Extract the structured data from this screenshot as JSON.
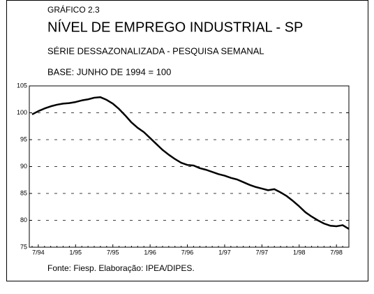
{
  "chart_data": {
    "type": "line",
    "label": "GRÁFICO 2.3",
    "title": "NÍVEL DE EMPREGO INDUSTRIAL - SP",
    "subtitle": "SÉRIE DESSAZONALIZADA - PESQUISA SEMANAL",
    "annotation": "BASE: JUNHO DE 1994 = 100",
    "source": "Fonte: Fiesp. Elaboração: IPEA/DIPES.",
    "categories": [
      null,
      "7/94",
      null,
      null,
      null,
      null,
      null,
      "1/95",
      null,
      null,
      null,
      null,
      null,
      "7/95",
      null,
      null,
      null,
      null,
      null,
      "1/96",
      null,
      null,
      null,
      null,
      null,
      "7/96",
      null,
      null,
      null,
      null,
      null,
      "1/97",
      null,
      null,
      null,
      null,
      null,
      "7/97",
      null,
      null,
      null,
      null,
      null,
      "1/98",
      null,
      null,
      null,
      null,
      null,
      "7/98",
      null,
      null
    ],
    "values": [
      99.7,
      100.3,
      100.8,
      101.2,
      101.5,
      101.7,
      101.8,
      102.0,
      102.3,
      102.5,
      102.8,
      102.9,
      102.4,
      101.7,
      100.7,
      99.5,
      98.2,
      97.2,
      96.4,
      95.3,
      94.2,
      93.1,
      92.2,
      91.4,
      90.7,
      90.3,
      90.2,
      89.7,
      89.4,
      89.0,
      88.6,
      88.3,
      87.9,
      87.6,
      87.1,
      86.6,
      86.2,
      85.9,
      85.6,
      85.8,
      85.2,
      84.5,
      83.6,
      82.6,
      81.5,
      80.7,
      80.0,
      79.4,
      79.0,
      78.9,
      79.1,
      78.4
    ],
    "color": "#000000",
    "ylim": [
      75,
      105
    ],
    "yticks": [
      75,
      80,
      85,
      90,
      95,
      100,
      105
    ],
    "grid": true
  }
}
